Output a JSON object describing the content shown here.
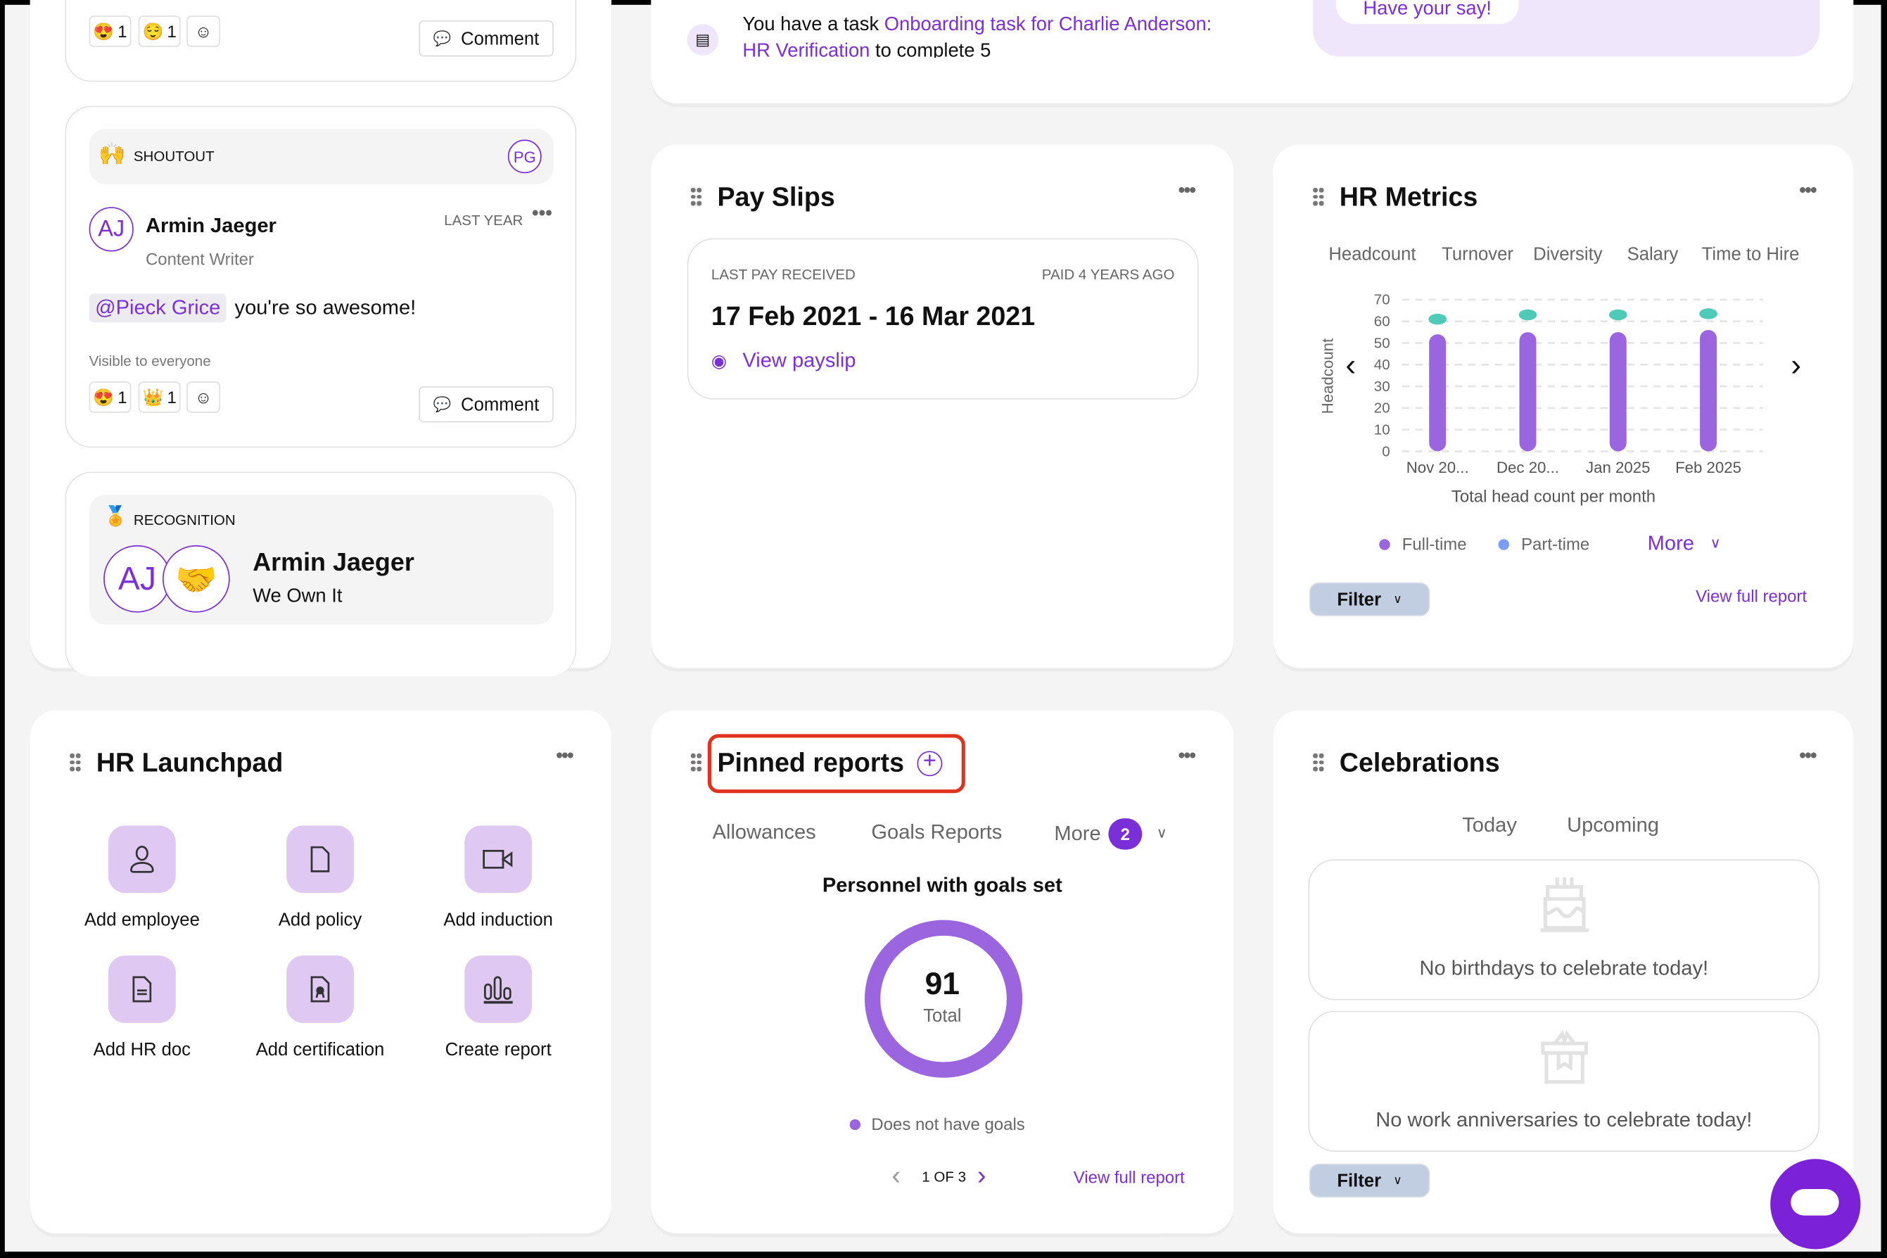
{
  "feed": {
    "post1": {
      "reactions": [
        {
          "emoji": "😍",
          "count": "1"
        },
        {
          "emoji": "😌",
          "count": "1"
        }
      ],
      "comment_label": "Comment"
    },
    "shoutout": {
      "type_label": "SHOUTOUT",
      "recipient_initials": "PG",
      "author_initials": "AJ",
      "author": "Armin Jaeger",
      "role": "Content Writer",
      "time": "LAST YEAR",
      "mention": "@Pieck Grice",
      "message": "you're so awesome!",
      "visibility": "Visible to everyone",
      "reactions": [
        {
          "emoji": "😍",
          "count": "1"
        },
        {
          "emoji": "👑",
          "count": "1"
        }
      ],
      "comment_label": "Comment"
    },
    "recognition": {
      "type_label": "RECOGNITION",
      "initials": "AJ",
      "name": "Armin Jaeger",
      "value": "We Own It"
    }
  },
  "task": {
    "prefix": "You have a task",
    "link": "Onboarding task for Charlie Anderson:",
    "link_line2": "HR Verification",
    "suffix2": "to complete 5"
  },
  "survey": {
    "button": "Have your say!"
  },
  "payslips": {
    "title": "Pay Slips",
    "last_pay_label": "LAST PAY RECEIVED",
    "paid_ago": "PAID 4 YEARS AGO",
    "period": "17 Feb 2021 - 16 Mar 2021",
    "view_label": "View payslip"
  },
  "hr_metrics": {
    "title": "HR Metrics",
    "tabs": [
      "Headcount",
      "Turnover",
      "Diversity",
      "Salary",
      "Time to Hire"
    ],
    "active_tab": "Headcount",
    "legend": [
      {
        "label": "Full-time",
        "color": "#9b65e0"
      },
      {
        "label": "Part-time",
        "color": "#7c9cf7"
      }
    ],
    "more_label": "More",
    "filter_label": "Filter",
    "view_report": "View full report"
  },
  "chart_data": {
    "type": "bar",
    "categories": [
      "Nov 20...",
      "Dec 20...",
      "Jan 2025",
      "Feb 2025"
    ],
    "series": [
      {
        "name": "Full-time",
        "values": [
          54,
          55,
          55,
          56
        ],
        "color": "#9b65e0"
      },
      {
        "values": [
          61,
          63,
          63,
          63.5
        ],
        "color": "#4ecab7",
        "marker": "dot"
      }
    ],
    "ylabel": "Headcount",
    "xlabel": "Total head count per month",
    "ylim": [
      0,
      70
    ],
    "yticks": [
      0,
      10,
      20,
      30,
      40,
      50,
      60,
      70
    ],
    "grid": true,
    "legend": "bottom"
  },
  "launchpad": {
    "title": "HR Launchpad",
    "items": [
      {
        "label": "Add employee",
        "icon": "person"
      },
      {
        "label": "Add policy",
        "icon": "document"
      },
      {
        "label": "Add induction",
        "icon": "video"
      },
      {
        "label": "Add HR doc",
        "icon": "doc-lines"
      },
      {
        "label": "Add certification",
        "icon": "certificate"
      },
      {
        "label": "Create report",
        "icon": "bar-chart"
      }
    ]
  },
  "pinned": {
    "title": "Pinned reports",
    "tabs": [
      "Allowances",
      "Goals Reports"
    ],
    "active_tab": "Goals Reports",
    "more_label": "More",
    "more_count": "2",
    "report_title": "Personnel with goals set",
    "total": "91",
    "total_label": "Total",
    "legend": "Does not have goals",
    "donut_color": "#9b65e0",
    "pager": "1 OF 3",
    "view_report": "View full report"
  },
  "celebrations": {
    "title": "Celebrations",
    "tabs": [
      "Today",
      "Upcoming"
    ],
    "active_tab": "Today",
    "birthdays_empty": "No birthdays to celebrate today!",
    "anniversaries_empty": "No work anniversaries to celebrate today!",
    "filter_label": "Filter"
  },
  "colors": {
    "accent": "#7b2fd9",
    "highlight": "#e0321c"
  }
}
